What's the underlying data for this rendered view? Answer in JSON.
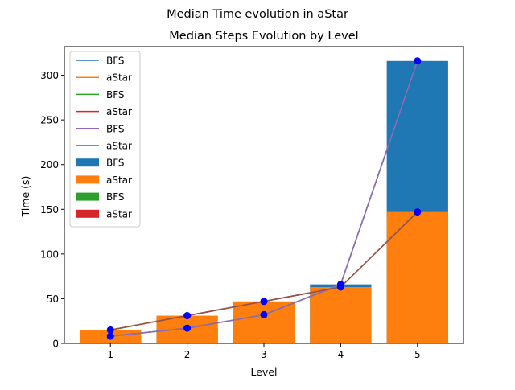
{
  "chart_data": {
    "type": "bar",
    "suptitle": "Median Time evolution in aStar",
    "title": "Median Steps Evolution by Level",
    "xlabel": "Level",
    "ylabel": "Time (s)",
    "categories": [
      "1",
      "2",
      "3",
      "4",
      "5"
    ],
    "x": [
      1,
      2,
      3,
      4,
      5
    ],
    "xlim": [
      0.4,
      5.6
    ],
    "ylim": [
      0,
      332
    ],
    "yticks": [
      0,
      50,
      100,
      150,
      200,
      250,
      300
    ],
    "bar_series": [
      {
        "name": "BFS",
        "color": "#1f77b4",
        "values": [
          8,
          17,
          32,
          66,
          316
        ]
      },
      {
        "name": "aStar",
        "color": "#ff7f0e",
        "values": [
          15,
          31,
          47,
          63,
          147
        ]
      },
      {
        "name": "BFS",
        "color": "#2ca02c",
        "values": [
          0,
          0,
          0,
          0,
          0
        ]
      },
      {
        "name": "aStar",
        "color": "#d62728",
        "values": [
          0,
          0,
          0,
          0,
          0
        ]
      }
    ],
    "line_series": [
      {
        "name": "BFS",
        "color": "#1f77b4",
        "values": [
          8,
          17,
          32,
          66,
          316
        ]
      },
      {
        "name": "aStar",
        "color": "#ff7f0e",
        "values": [
          15,
          31,
          47,
          63,
          147
        ]
      },
      {
        "name": "BFS",
        "color": "#2ca02c",
        "values": [
          8,
          17,
          32,
          66,
          316
        ]
      },
      {
        "name": "aStar",
        "color": "#d62728",
        "values": [
          15,
          31,
          47,
          63,
          147
        ]
      },
      {
        "name": "BFS",
        "color": "#9467bd",
        "values": [
          8,
          17,
          32,
          66,
          316
        ],
        "markers": true
      },
      {
        "name": "aStar",
        "color": "#8c564b",
        "values": [
          15,
          31,
          47,
          63,
          147
        ],
        "markers": true
      }
    ],
    "marker_color": "#0000ff",
    "legend": [
      {
        "label": "BFS",
        "kind": "line",
        "color": "#1f77b4"
      },
      {
        "label": "aStar",
        "kind": "line",
        "color": "#ff7f0e"
      },
      {
        "label": "BFS",
        "kind": "line",
        "color": "#2ca02c"
      },
      {
        "label": "aStar",
        "kind": "line",
        "color": "#d62728"
      },
      {
        "label": "BFS",
        "kind": "line",
        "color": "#9467bd"
      },
      {
        "label": "aStar",
        "kind": "line",
        "color": "#8c564b"
      },
      {
        "label": "BFS",
        "kind": "patch",
        "color": "#1f77b4"
      },
      {
        "label": "aStar",
        "kind": "patch",
        "color": "#ff7f0e"
      },
      {
        "label": "BFS",
        "kind": "patch",
        "color": "#2ca02c"
      },
      {
        "label": "aStar",
        "kind": "patch",
        "color": "#d62728"
      }
    ],
    "legend_position": "upper-left",
    "grid": false
  }
}
